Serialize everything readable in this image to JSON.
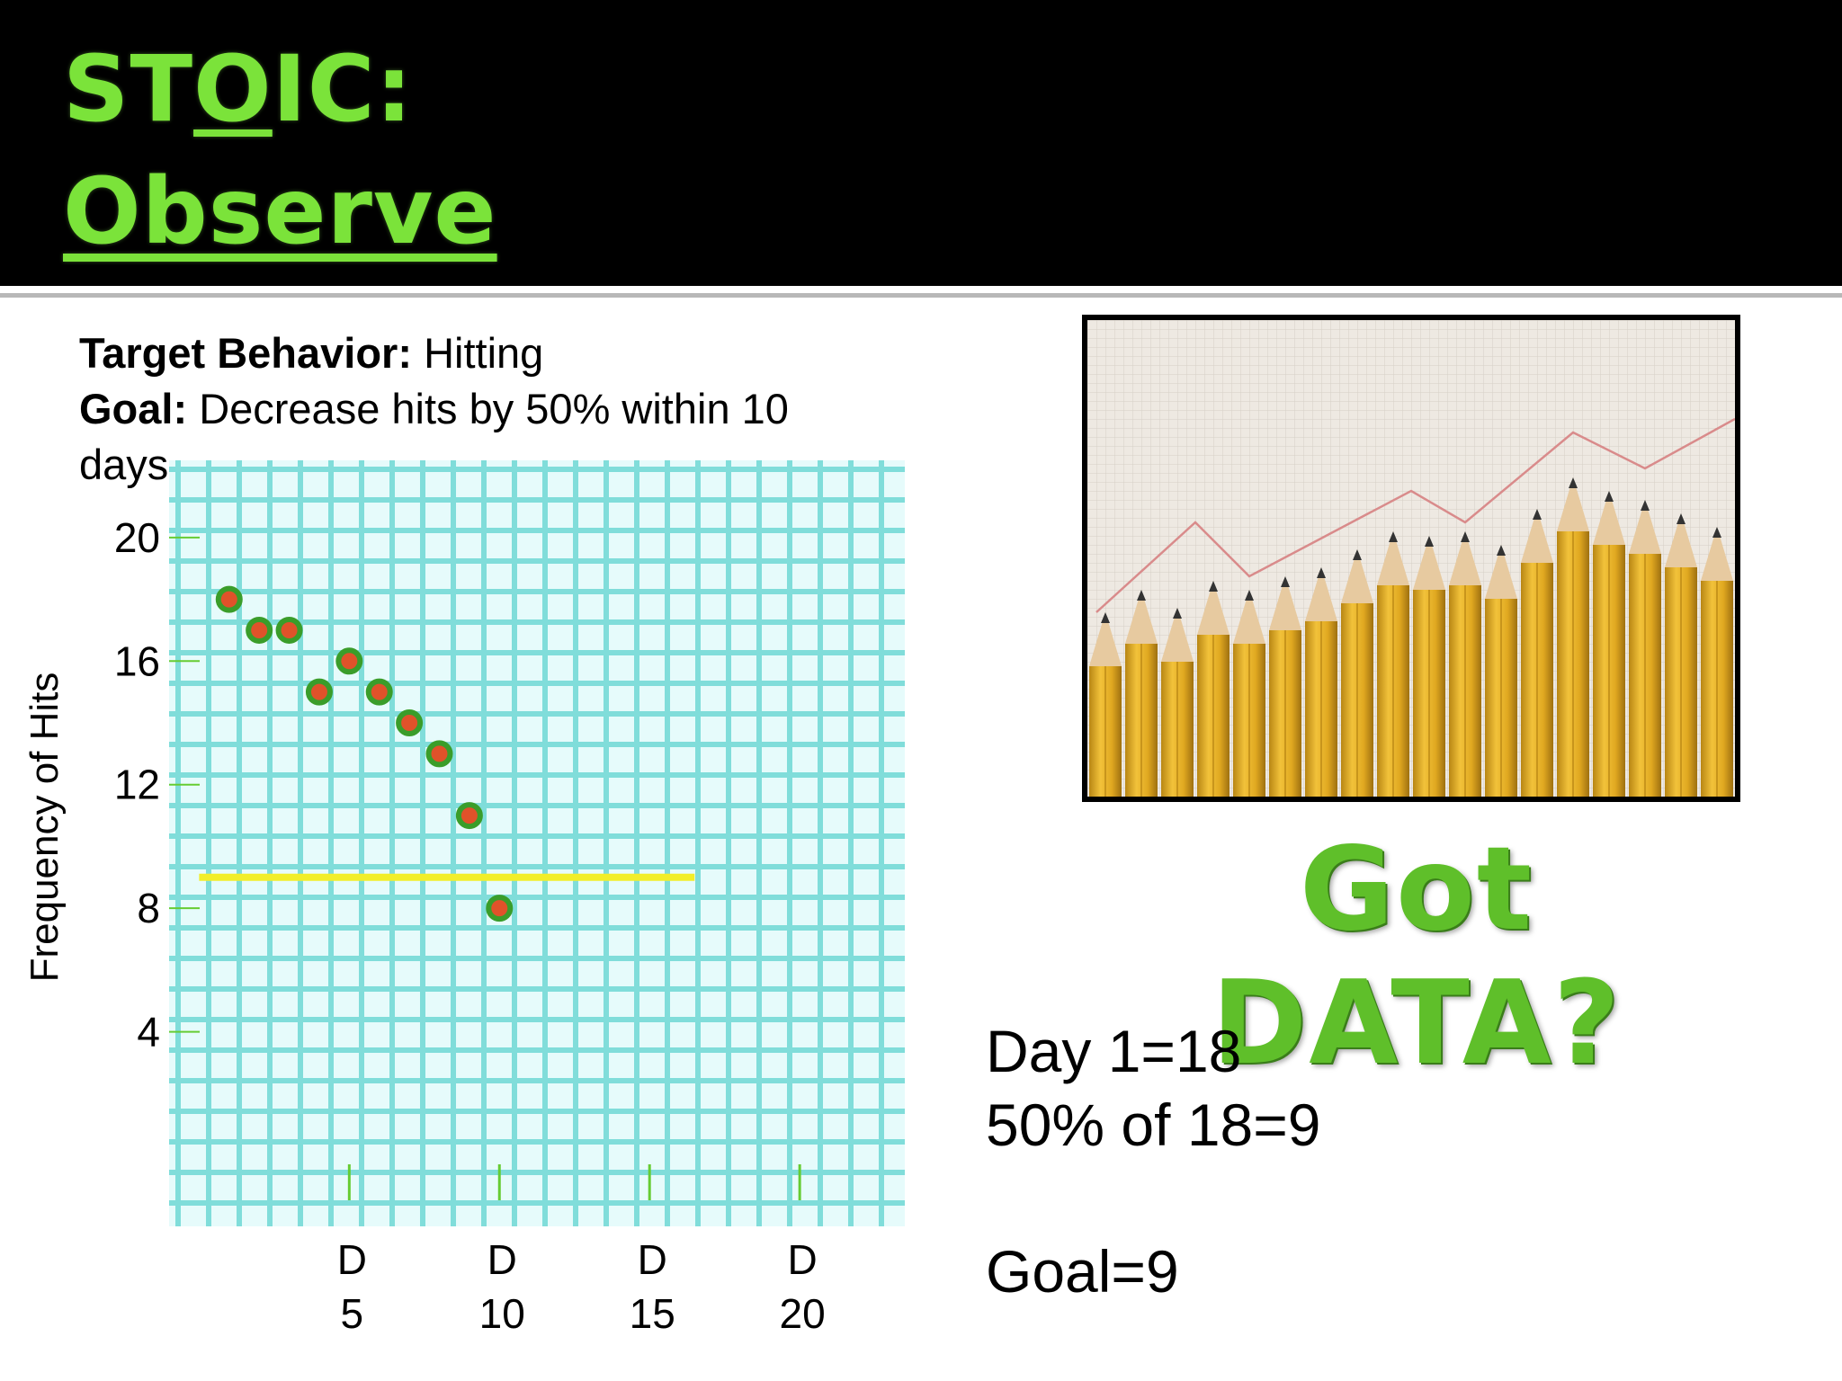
{
  "slide": {
    "title_part1": "ST",
    "title_underlined": "O",
    "title_part2": "IC:",
    "title_line2": "Observe"
  },
  "info": {
    "target_label": "Target Behavior:",
    "target_value": "Hitting",
    "goal_label": "Goal:",
    "goal_value": "Decrease hits by 50% within 10 days"
  },
  "side": {
    "got_data": "Got DATA?",
    "calc_line1": "Day 1=18",
    "calc_line2": "50% of 18=9",
    "calc_line3": "Goal=9"
  },
  "photo": {
    "icon": "pencils-bar-chart-photo",
    "pencil_color": "#e8b32a",
    "graph_paper_color": "#e9e4dd",
    "trend_line_color": "#d97a7a"
  },
  "chart_data": {
    "type": "scatter",
    "title": "",
    "xlabel": "",
    "ylabel": "Frequency of Hits",
    "x_ticks": [
      {
        "x": 5,
        "top": "D",
        "bottom": "5"
      },
      {
        "x": 10,
        "top": "D",
        "bottom": "10"
      },
      {
        "x": 15,
        "top": "D",
        "bottom": "15"
      },
      {
        "x": 20,
        "top": "D",
        "bottom": "20"
      }
    ],
    "y_ticks": [
      20,
      16,
      12,
      8,
      4
    ],
    "xlim": [
      -1.0,
      23.5
    ],
    "ylim": [
      -2.3,
      22.5
    ],
    "grid": true,
    "grid_color": "#5fd3d0",
    "point_color": "#e0522a",
    "point_outline": "#3a9d2a",
    "series": [
      {
        "points": [
          {
            "x": 1,
            "y": 18
          },
          {
            "x": 2,
            "y": 17
          },
          {
            "x": 3,
            "y": 17
          },
          {
            "x": 4,
            "y": 15
          },
          {
            "x": 5,
            "y": 16
          },
          {
            "x": 6,
            "y": 15
          },
          {
            "x": 7,
            "y": 14
          },
          {
            "x": 8,
            "y": 13
          },
          {
            "x": 9,
            "y": 11
          },
          {
            "x": 10,
            "y": 8
          }
        ]
      }
    ],
    "goal_line": {
      "y": 9,
      "x_start": 0,
      "x_end": 16.5,
      "color": "#f2ee2a"
    }
  }
}
